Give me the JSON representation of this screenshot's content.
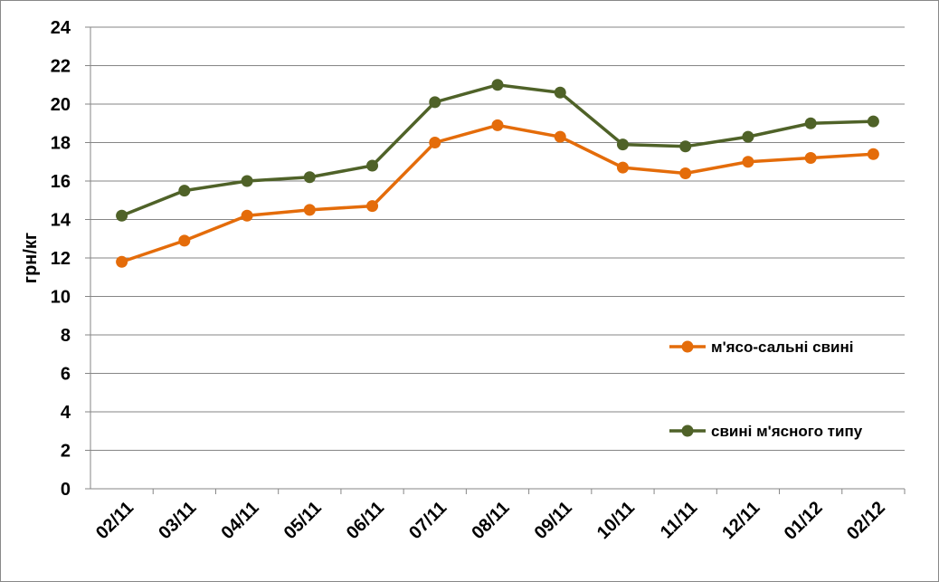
{
  "chart_data": {
    "type": "line",
    "title": "",
    "xlabel": "",
    "ylabel": "грн/кг",
    "ylim": [
      0,
      24
    ],
    "yticks": [
      0,
      2,
      4,
      6,
      8,
      10,
      12,
      14,
      16,
      18,
      20,
      22,
      24
    ],
    "grid": true,
    "legend_position": "right",
    "categories": [
      "02/11",
      "03/11",
      "04/11",
      "05/11",
      "06/11",
      "07/11",
      "08/11",
      "09/11",
      "10/11",
      "11/11",
      "12/11",
      "01/12",
      "02/12"
    ],
    "series": [
      {
        "name": "м'ясо-сальні свині",
        "color": "#E46C0A",
        "values": [
          11.8,
          12.9,
          14.2,
          14.5,
          14.7,
          18.0,
          18.9,
          18.3,
          16.7,
          16.4,
          17.0,
          17.2,
          17.4
        ]
      },
      {
        "name": "свині м'ясного типу",
        "color": "#4F6228",
        "values": [
          14.2,
          15.5,
          16.0,
          16.2,
          16.8,
          20.1,
          21.0,
          20.6,
          17.9,
          17.8,
          18.3,
          19.0,
          19.1
        ]
      }
    ]
  }
}
